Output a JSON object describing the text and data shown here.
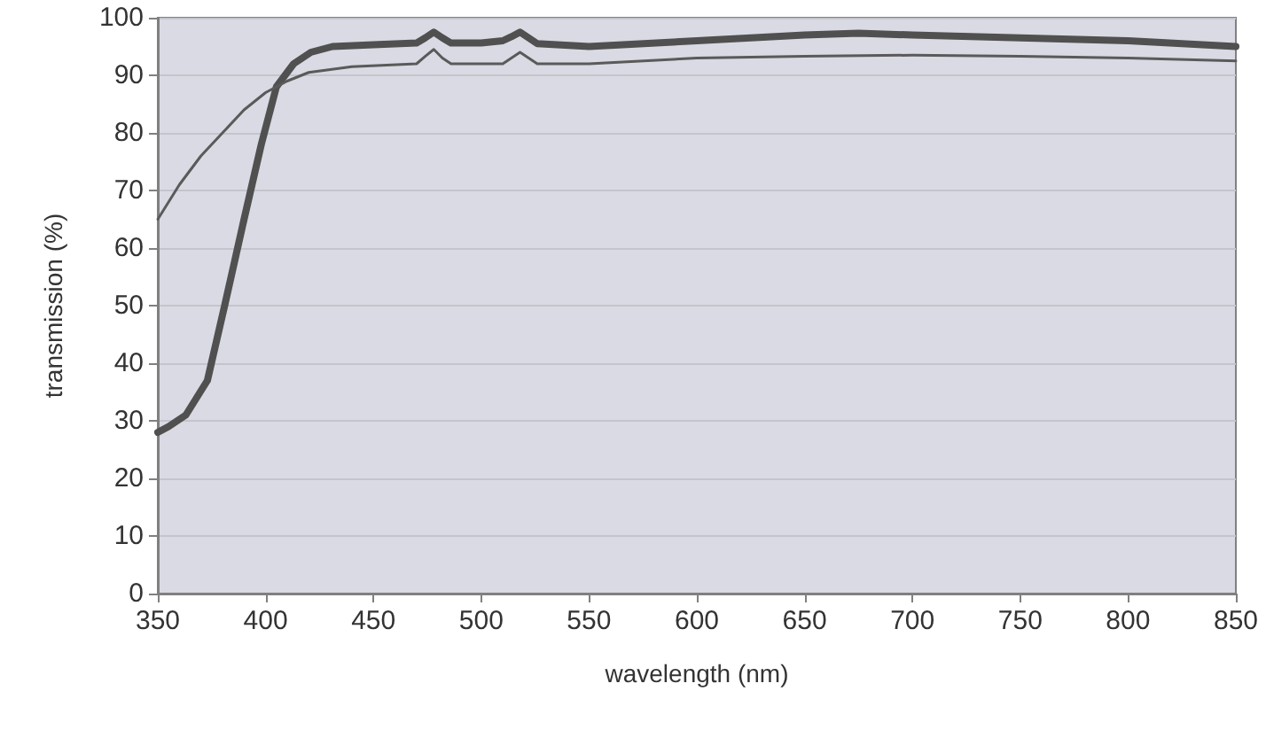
{
  "chart_data": {
    "type": "line",
    "xlabel": "wavelength (nm)",
    "ylabel": "transmission (%)",
    "xlim": [
      350,
      850
    ],
    "xticks": [
      350,
      400,
      450,
      500,
      550,
      600,
      650,
      700,
      750,
      800,
      850
    ],
    "ylim": [
      0,
      100
    ],
    "yticks": [
      0,
      10,
      20,
      30,
      40,
      50,
      60,
      70,
      80,
      90,
      100
    ],
    "grid": "y",
    "marker": "none",
    "line_style": "solid",
    "series": [
      {
        "color": "#505050",
        "x": [
          350,
          355,
          363,
          373,
          381,
          390,
          398,
          405,
          413,
          421,
          431,
          450,
          470,
          474,
          478,
          482,
          486,
          500,
          510,
          514,
          518,
          522,
          526,
          550,
          600,
          650,
          675,
          700,
          750,
          800,
          850
        ],
        "values": [
          28,
          29,
          31,
          37,
          50,
          65,
          78,
          88,
          92,
          94,
          95,
          95.3,
          95.6,
          96.5,
          97.5,
          96.5,
          95.6,
          95.6,
          96,
          96.7,
          97.5,
          96.5,
          95.5,
          95,
          96,
          97,
          97.3,
          97,
          96.5,
          96,
          95
        ]
      },
      {
        "color": "#5a5a5a",
        "x": [
          350,
          360,
          370,
          380,
          390,
          400,
          410,
          420,
          440,
          470,
          474,
          478,
          482,
          486,
          510,
          514,
          518,
          522,
          526,
          550,
          600,
          650,
          700,
          750,
          800,
          850
        ],
        "values": [
          65,
          71,
          76,
          80,
          84,
          87,
          89,
          90.5,
          91.5,
          92,
          93.3,
          94.5,
          93,
          92,
          92,
          93,
          94,
          93,
          92,
          92,
          93,
          93.3,
          93.5,
          93.3,
          93,
          92.5
        ]
      }
    ]
  }
}
